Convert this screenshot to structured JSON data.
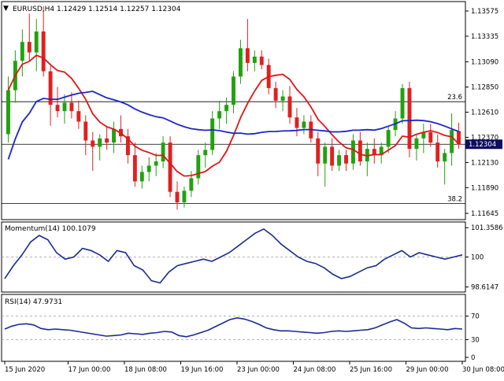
{
  "header": {
    "symbol_line": "EURUSD,H4  1.12429 1.12514 1.12257 1.12304"
  },
  "colors": {
    "bull": "#22a10f",
    "bear": "#e02020",
    "ma_fast": "#e01515",
    "ma_slow": "#1c26c8",
    "indicator": "#1c2a90",
    "grid": "#000000",
    "current_price_bg": "#0e0e60"
  },
  "chart_data": [
    {
      "type": "candlestick",
      "name": "price",
      "ylim": [
        1.116,
        1.1365
      ],
      "price_ticks": [
        "1.13575",
        "1.13335",
        "1.13090",
        "1.12850",
        "1.12610",
        "1.12370",
        "1.12130",
        "1.11890",
        "1.11645"
      ],
      "price_tick_values": [
        1.13575,
        1.13335,
        1.1309,
        1.1285,
        1.1261,
        1.1237,
        1.1213,
        1.1189,
        1.11645
      ],
      "current_price": "1.12304",
      "fib_levels": [
        {
          "label": "23.6",
          "value": 1.1271
        },
        {
          "label": "38.2",
          "value": 1.1174
        }
      ],
      "candles": [
        [
          1.124,
          1.1295,
          1.1232,
          1.1282
        ],
        [
          1.1282,
          1.132,
          1.127,
          1.131
        ],
        [
          1.131,
          1.134,
          1.1295,
          1.1328
        ],
        [
          1.1328,
          1.1355,
          1.131,
          1.1318
        ],
        [
          1.1318,
          1.135,
          1.13,
          1.1338
        ],
        [
          1.1338,
          1.1362,
          1.1295,
          1.13
        ],
        [
          1.13,
          1.1305,
          1.1248,
          1.1268
        ],
        [
          1.1268,
          1.1285,
          1.1256,
          1.1262
        ],
        [
          1.1262,
          1.1278,
          1.125,
          1.127
        ],
        [
          1.127,
          1.128,
          1.1255,
          1.1262
        ],
        [
          1.1262,
          1.1272,
          1.1245,
          1.1252
        ],
        [
          1.1252,
          1.1258,
          1.122,
          1.1234
        ],
        [
          1.1234,
          1.1242,
          1.1205,
          1.1228
        ],
        [
          1.1228,
          1.124,
          1.1215,
          1.1236
        ],
        [
          1.1236,
          1.1248,
          1.1225,
          1.1232
        ],
        [
          1.1232,
          1.1252,
          1.1222,
          1.1245
        ],
        [
          1.1245,
          1.1258,
          1.1232,
          1.1238
        ],
        [
          1.1238,
          1.1245,
          1.1212,
          1.122
        ],
        [
          1.122,
          1.1232,
          1.119,
          1.1195
        ],
        [
          1.1195,
          1.121,
          1.1188,
          1.1204
        ],
        [
          1.1204,
          1.1218,
          1.1195,
          1.121
        ],
        [
          1.121,
          1.1222,
          1.12,
          1.1214
        ],
        [
          1.1214,
          1.1238,
          1.1208,
          1.1232
        ],
        [
          1.1232,
          1.1238,
          1.118,
          1.1185
        ],
        [
          1.1185,
          1.1195,
          1.1168,
          1.1175
        ],
        [
          1.1175,
          1.119,
          1.117,
          1.1186
        ],
        [
          1.1186,
          1.1205,
          1.118,
          1.1198
        ],
        [
          1.1198,
          1.1225,
          1.1192,
          1.122
        ],
        [
          1.122,
          1.1232,
          1.1208,
          1.1225
        ],
        [
          1.1225,
          1.1262,
          1.122,
          1.1255
        ],
        [
          1.1255,
          1.1272,
          1.1245,
          1.1262
        ],
        [
          1.1262,
          1.1275,
          1.125,
          1.1268
        ],
        [
          1.1268,
          1.13,
          1.126,
          1.1295
        ],
        [
          1.1295,
          1.133,
          1.1288,
          1.1322
        ],
        [
          1.1322,
          1.135,
          1.13,
          1.1308
        ],
        [
          1.1308,
          1.132,
          1.13,
          1.1314
        ],
        [
          1.1314,
          1.132,
          1.1302,
          1.1306
        ],
        [
          1.1306,
          1.1312,
          1.1278,
          1.1284
        ],
        [
          1.1284,
          1.129,
          1.1265,
          1.1272
        ],
        [
          1.1272,
          1.1282,
          1.1262,
          1.1276
        ],
        [
          1.1276,
          1.1286,
          1.125,
          1.1256
        ],
        [
          1.1256,
          1.1265,
          1.1238,
          1.1246
        ],
        [
          1.1246,
          1.1258,
          1.124,
          1.1252
        ],
        [
          1.1252,
          1.1258,
          1.1232,
          1.1236
        ],
        [
          1.1236,
          1.1242,
          1.12,
          1.1212
        ],
        [
          1.1212,
          1.1232,
          1.119,
          1.1228
        ],
        [
          1.1228,
          1.1236,
          1.1205,
          1.121
        ],
        [
          1.121,
          1.1225,
          1.1205,
          1.122
        ],
        [
          1.122,
          1.1225,
          1.1205,
          1.1212
        ],
        [
          1.1212,
          1.124,
          1.1206,
          1.1234
        ],
        [
          1.1234,
          1.1242,
          1.121,
          1.1214
        ],
        [
          1.1214,
          1.1232,
          1.12,
          1.1226
        ],
        [
          1.1226,
          1.1236,
          1.1212,
          1.122
        ],
        [
          1.122,
          1.1232,
          1.1212,
          1.1228
        ],
        [
          1.1228,
          1.1248,
          1.1222,
          1.1244
        ],
        [
          1.1244,
          1.1262,
          1.1238,
          1.1255
        ],
        [
          1.1255,
          1.1288,
          1.125,
          1.1284
        ],
        [
          1.1284,
          1.129,
          1.1218,
          1.1226
        ],
        [
          1.1226,
          1.124,
          1.1215,
          1.1236
        ],
        [
          1.1236,
          1.125,
          1.1222,
          1.1242
        ],
        [
          1.1242,
          1.125,
          1.1228,
          1.1232
        ],
        [
          1.1232,
          1.124,
          1.1208,
          1.1214
        ],
        [
          1.1214,
          1.1226,
          1.1192,
          1.1222
        ],
        [
          1.1222,
          1.126,
          1.121,
          1.1244
        ],
        [
          1.1243,
          1.1251,
          1.1226,
          1.123
        ]
      ]
    },
    {
      "type": "line",
      "name": "Momentum(14)",
      "title": "Momentum(14) 100.1079",
      "y_ticks": [
        "101.3586",
        "100",
        "98.6147"
      ],
      "y_tick_values": [
        101.3586,
        100.0,
        98.6147
      ],
      "ylim": [
        98.45,
        101.55
      ],
      "values": [
        99.0,
        99.6,
        100.1,
        100.7,
        101.0,
        100.8,
        100.2,
        99.9,
        100.0,
        100.4,
        100.3,
        100.1,
        99.8,
        100.3,
        100.2,
        99.6,
        99.4,
        98.9,
        98.8,
        99.3,
        99.6,
        99.7,
        99.8,
        99.9,
        99.8,
        100.0,
        100.2,
        100.5,
        100.8,
        101.1,
        101.3,
        101.0,
        100.6,
        100.3,
        100.0,
        99.8,
        99.7,
        99.5,
        99.2,
        99.0,
        99.1,
        99.3,
        99.5,
        99.6,
        99.9,
        100.1,
        100.3,
        100.0,
        100.2,
        100.1,
        100.0,
        99.9,
        100.0,
        100.1
      ]
    },
    {
      "type": "line",
      "name": "RSI(14)",
      "title": "RSI(14) 47.9731",
      "y_ticks": [
        "70",
        "30",
        "0"
      ],
      "y_tick_values": [
        70,
        30,
        0
      ],
      "ylim": [
        -4,
        104
      ],
      "values": [
        48,
        53,
        56,
        57,
        55,
        49,
        47,
        48,
        47,
        46,
        44,
        42,
        40,
        38,
        36,
        37,
        38,
        41,
        40,
        39,
        41,
        42,
        44,
        43,
        37,
        35,
        38,
        42,
        46,
        52,
        58,
        64,
        67,
        65,
        61,
        56,
        50,
        47,
        45,
        45,
        44,
        43,
        42,
        41,
        42,
        44,
        45,
        44,
        45,
        46,
        47,
        50,
        55,
        60,
        64,
        58,
        50,
        49,
        50,
        49,
        48,
        47,
        49,
        48
      ]
    }
  ],
  "time_axis": [
    {
      "label": "15 Jun 2020",
      "index": 0
    },
    {
      "label": "17 Jun 00:00",
      "index": 9
    },
    {
      "label": "18 Jun 08:00",
      "index": 17
    },
    {
      "label": "19 Jun 16:00",
      "index": 25
    },
    {
      "label": "23 Jun 00:00",
      "index": 33
    },
    {
      "label": "24 Jun 08:00",
      "index": 41
    },
    {
      "label": "25 Jun 16:00",
      "index": 49
    },
    {
      "label": "29 Jun 00:00",
      "index": 57
    },
    {
      "label": "30 Jun 08:00",
      "index": 65
    }
  ]
}
